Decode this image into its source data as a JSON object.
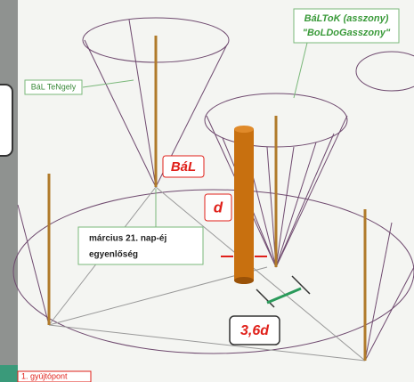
{
  "labels": {
    "axis": "BáL TeNgely",
    "cone_title": "BáLToK (asszony)",
    "cone_subtitle": "\"BoLDoGasszony\"",
    "pillar": "BáL",
    "diameter": "d",
    "equinox_1": "március 21. nap-éj",
    "equinox_2": "egyenlőség",
    "distance": "3,6d",
    "focus": "1. gyújtópont"
  }
}
